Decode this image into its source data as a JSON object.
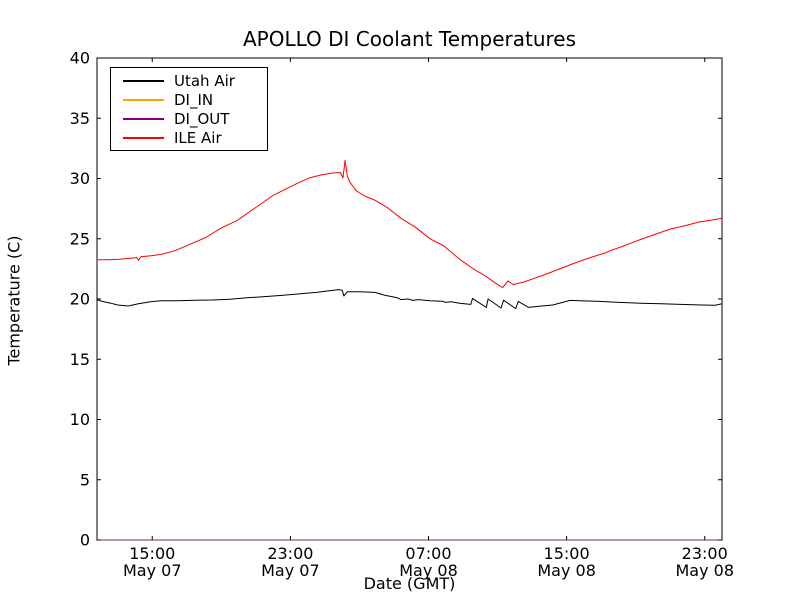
{
  "chart_data": {
    "type": "line",
    "title": "APOLLO DI Coolant Temperatures",
    "xlabel": "Date (GMT)",
    "ylabel": "Temperature (C)",
    "grid": false,
    "legend_position": "upper-left",
    "x_unit": "hours since May 07 00:00 GMT",
    "xlim": [
      11.8,
      48.0
    ],
    "ylim": [
      0,
      40
    ],
    "yticks": [
      0,
      5,
      10,
      15,
      20,
      25,
      30,
      35,
      40
    ],
    "xticks": [
      {
        "t": 15,
        "time": "15:00",
        "date": "May 07"
      },
      {
        "t": 23,
        "time": "23:00",
        "date": "May 07"
      },
      {
        "t": 31,
        "time": "07:00",
        "date": "May 08"
      },
      {
        "t": 39,
        "time": "15:00",
        "date": "May 08"
      },
      {
        "t": 47,
        "time": "23:00",
        "date": "May 08"
      }
    ],
    "series": [
      {
        "name": "Utah Air",
        "color": "#000000",
        "opacity": 1,
        "points": [
          [
            11.8,
            19.95
          ],
          [
            12.1,
            19.8
          ],
          [
            12.6,
            19.65
          ],
          [
            13.0,
            19.5
          ],
          [
            13.6,
            19.42
          ],
          [
            14.2,
            19.6
          ],
          [
            14.9,
            19.78
          ],
          [
            15.5,
            19.85
          ],
          [
            16.5,
            19.85
          ],
          [
            17.5,
            19.9
          ],
          [
            18.5,
            19.92
          ],
          [
            19.5,
            19.98
          ],
          [
            20.5,
            20.1
          ],
          [
            21.5,
            20.2
          ],
          [
            22.5,
            20.3
          ],
          [
            23.5,
            20.42
          ],
          [
            24.5,
            20.55
          ],
          [
            25.3,
            20.7
          ],
          [
            25.8,
            20.78
          ],
          [
            26.0,
            20.72
          ],
          [
            26.1,
            20.25
          ],
          [
            26.3,
            20.6
          ],
          [
            27.0,
            20.6
          ],
          [
            27.9,
            20.55
          ],
          [
            28.5,
            20.3
          ],
          [
            29.2,
            20.1
          ],
          [
            29.4,
            19.95
          ],
          [
            29.8,
            20.0
          ],
          [
            30.1,
            19.88
          ],
          [
            30.4,
            19.95
          ],
          [
            31.1,
            19.85
          ],
          [
            31.8,
            19.82
          ],
          [
            32.0,
            19.72
          ],
          [
            32.3,
            19.78
          ],
          [
            32.8,
            19.65
          ],
          [
            33.3,
            19.58
          ],
          [
            33.45,
            19.55
          ],
          [
            33.55,
            20.05
          ],
          [
            34.35,
            19.3
          ],
          [
            34.45,
            20.0
          ],
          [
            35.2,
            19.25
          ],
          [
            35.35,
            19.9
          ],
          [
            36.05,
            19.2
          ],
          [
            36.2,
            19.8
          ],
          [
            36.8,
            19.3
          ],
          [
            37.4,
            19.4
          ],
          [
            38.2,
            19.5
          ],
          [
            39.2,
            19.88
          ],
          [
            39.8,
            19.85
          ],
          [
            40.9,
            19.8
          ],
          [
            42.0,
            19.72
          ],
          [
            43.3,
            19.65
          ],
          [
            44.5,
            19.6
          ],
          [
            45.6,
            19.55
          ],
          [
            46.8,
            19.5
          ],
          [
            47.6,
            19.48
          ],
          [
            48.0,
            19.6
          ]
        ]
      },
      {
        "name": "DI_IN",
        "color": "#ffa500",
        "opacity": 0.55,
        "points": [
          [
            11.8,
            0
          ],
          [
            48.0,
            0
          ]
        ]
      },
      {
        "name": "DI_OUT",
        "color": "#800080",
        "opacity": 0.55,
        "points": [
          [
            11.8,
            0
          ],
          [
            48.0,
            0
          ]
        ]
      },
      {
        "name": "ILE Air",
        "color": "#ff0000",
        "opacity": 1,
        "points": [
          [
            11.8,
            23.25
          ],
          [
            12.5,
            23.25
          ],
          [
            13.1,
            23.3
          ],
          [
            13.9,
            23.4
          ],
          [
            14.1,
            23.45
          ],
          [
            14.2,
            23.2
          ],
          [
            14.35,
            23.5
          ],
          [
            15.0,
            23.6
          ],
          [
            15.5,
            23.7
          ],
          [
            16.3,
            24.0
          ],
          [
            17.2,
            24.55
          ],
          [
            18.1,
            25.1
          ],
          [
            19.0,
            25.9
          ],
          [
            19.9,
            26.5
          ],
          [
            20.7,
            27.3
          ],
          [
            21.4,
            28.0
          ],
          [
            22.0,
            28.6
          ],
          [
            22.7,
            29.1
          ],
          [
            23.4,
            29.6
          ],
          [
            24.1,
            30.05
          ],
          [
            24.8,
            30.3
          ],
          [
            25.4,
            30.45
          ],
          [
            25.9,
            30.5
          ],
          [
            26.05,
            30.05
          ],
          [
            26.17,
            31.5
          ],
          [
            26.3,
            30.2
          ],
          [
            26.45,
            29.7
          ],
          [
            26.8,
            29.0
          ],
          [
            27.3,
            28.55
          ],
          [
            27.9,
            28.2
          ],
          [
            28.6,
            27.6
          ],
          [
            29.4,
            26.7
          ],
          [
            30.2,
            26.0
          ],
          [
            31.1,
            25.0
          ],
          [
            31.9,
            24.4
          ],
          [
            32.8,
            23.3
          ],
          [
            33.6,
            22.5
          ],
          [
            34.3,
            21.9
          ],
          [
            34.9,
            21.3
          ],
          [
            35.3,
            20.95
          ],
          [
            35.6,
            21.5
          ],
          [
            35.9,
            21.2
          ],
          [
            36.5,
            21.4
          ],
          [
            36.9,
            21.6
          ],
          [
            37.7,
            22.0
          ],
          [
            38.6,
            22.5
          ],
          [
            39.5,
            23.0
          ],
          [
            40.4,
            23.45
          ],
          [
            41.3,
            23.85
          ],
          [
            41.5,
            24.0
          ],
          [
            42.3,
            24.4
          ],
          [
            43.3,
            24.95
          ],
          [
            44.2,
            25.4
          ],
          [
            45.0,
            25.8
          ],
          [
            45.9,
            26.1
          ],
          [
            46.7,
            26.4
          ],
          [
            47.4,
            26.55
          ],
          [
            48.0,
            26.7
          ]
        ]
      }
    ]
  }
}
